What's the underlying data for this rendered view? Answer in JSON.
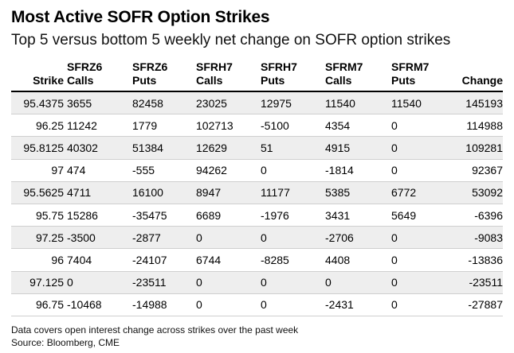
{
  "chart_data": {
    "type": "table",
    "title": "Most Active SOFR Option Strikes",
    "subtitle": "Top 5 versus bottom 5 weekly net change on SOFR option strikes",
    "columns": [
      {
        "line1": "",
        "line2": "Strike"
      },
      {
        "line1": "SFRZ6",
        "line2": "Calls"
      },
      {
        "line1": "SFRZ6",
        "line2": "Puts"
      },
      {
        "line1": "SFRH7",
        "line2": "Calls"
      },
      {
        "line1": "SFRH7",
        "line2": "Puts"
      },
      {
        "line1": "SFRM7",
        "line2": "Calls"
      },
      {
        "line1": "SFRM7",
        "line2": "Puts"
      },
      {
        "line1": "",
        "line2": "Change"
      }
    ],
    "rows": [
      [
        "95.4375",
        "3655",
        "82458",
        "23025",
        "12975",
        "11540",
        "11540",
        "145193"
      ],
      [
        "96.25",
        "11242",
        "1779",
        "102713",
        "-5100",
        "4354",
        "0",
        "114988"
      ],
      [
        "95.8125",
        "40302",
        "51384",
        "12629",
        "51",
        "4915",
        "0",
        "109281"
      ],
      [
        "97",
        "474",
        "-555",
        "94262",
        "0",
        "-1814",
        "0",
        "92367"
      ],
      [
        "95.5625",
        "4711",
        "16100",
        "8947",
        "11177",
        "5385",
        "6772",
        "53092"
      ],
      [
        "95.75",
        "15286",
        "-35475",
        "6689",
        "-1976",
        "3431",
        "5649",
        "-6396"
      ],
      [
        "97.25",
        "-3500",
        "-2877",
        "0",
        "0",
        "-2706",
        "0",
        "-9083"
      ],
      [
        "96",
        "7404",
        "-24107",
        "6744",
        "-8285",
        "4408",
        "0",
        "-13836"
      ],
      [
        "97.125",
        "0",
        "-23511",
        "0",
        "0",
        "0",
        "0",
        "-23511"
      ],
      [
        "96.75",
        "-10468",
        "-14988",
        "0",
        "0",
        "-2431",
        "0",
        "-27887"
      ]
    ]
  },
  "footer": {
    "note": "Data covers open interest change across strikes over the past week",
    "source": "Source: Bloomberg, CME"
  }
}
